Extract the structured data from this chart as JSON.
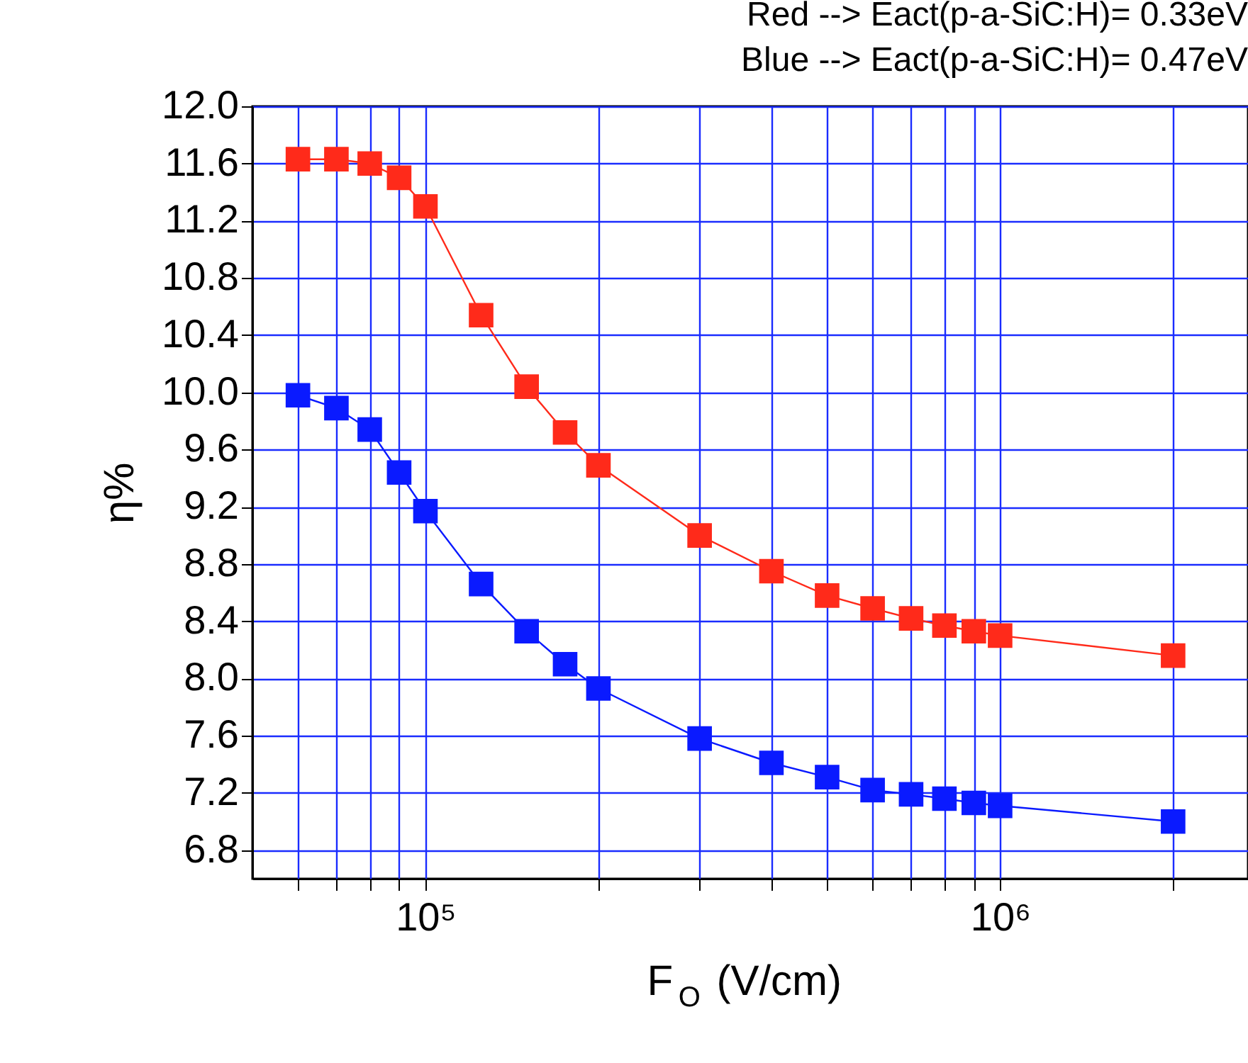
{
  "chart_data": {
    "type": "line",
    "xlabel": "F$_{O}$ (V/cm)",
    "ylabel": "η%",
    "annotations": [
      "Red --> Eact(p-a-SiC:H)= 0.33eV",
      "Blue --> Eact(p-a-SiC:H)= 0.47eV"
    ],
    "x": [
      60000,
      70000,
      80000,
      90000,
      100000,
      125000,
      150000,
      175000,
      200000,
      300000,
      400000,
      500000,
      600000,
      700000,
      800000,
      900000,
      1000000,
      2000000
    ],
    "series": [
      {
        "color": "#ff2a1a",
        "values": [
          11.63,
          11.63,
          11.6,
          11.5,
          11.3,
          10.54,
          10.04,
          9.72,
          9.49,
          9.0,
          8.75,
          8.58,
          8.49,
          8.42,
          8.37,
          8.33,
          8.3,
          8.16
        ]
      },
      {
        "color": "#0a1aff",
        "values": [
          9.98,
          9.89,
          9.74,
          9.44,
          9.17,
          8.66,
          8.33,
          8.1,
          7.93,
          7.58,
          7.41,
          7.31,
          7.22,
          7.19,
          7.16,
          7.13,
          7.11,
          7.0
        ]
      }
    ],
    "log": "x",
    "xlim": [
      50000,
      2700000
    ],
    "xticks": [
      {
        "value": 60000,
        "label": null
      },
      {
        "value": 70000,
        "label": null
      },
      {
        "value": 80000,
        "label": null
      },
      {
        "value": 90000,
        "label": null
      },
      {
        "value": 100000,
        "label": "10⁵"
      },
      {
        "value": 200000,
        "label": null
      },
      {
        "value": 300000,
        "label": null
      },
      {
        "value": 400000,
        "label": null
      },
      {
        "value": 500000,
        "label": null
      },
      {
        "value": 600000,
        "label": null
      },
      {
        "value": 700000,
        "label": null
      },
      {
        "value": 800000,
        "label": null
      },
      {
        "value": 900000,
        "label": null
      },
      {
        "value": 1000000,
        "label": "10⁶"
      },
      {
        "value": 2000000,
        "label": null
      }
    ],
    "ylim": [
      6.6,
      12.0
    ],
    "yticks": [
      {
        "value": 6.8,
        "label": "6.8"
      },
      {
        "value": 7.2,
        "label": "7.2"
      },
      {
        "value": 7.6,
        "label": "7.6"
      },
      {
        "value": 8.0,
        "label": "8.0"
      },
      {
        "value": 8.4,
        "label": "8.4"
      },
      {
        "value": 8.8,
        "label": "8.8"
      },
      {
        "value": 9.2,
        "label": "9.2"
      },
      {
        "value": 9.6,
        "label": "9.6"
      },
      {
        "value": 10.0,
        "label": "10.0"
      },
      {
        "value": 10.4,
        "label": "10.4"
      },
      {
        "value": 10.8,
        "label": "10.8"
      },
      {
        "value": 11.2,
        "label": "11.2"
      },
      {
        "value": 11.6,
        "label": "11.6"
      },
      {
        "value": 12.0,
        "label": "12.0"
      }
    ],
    "grid": true,
    "marker": "square",
    "line_style": "solid"
  }
}
